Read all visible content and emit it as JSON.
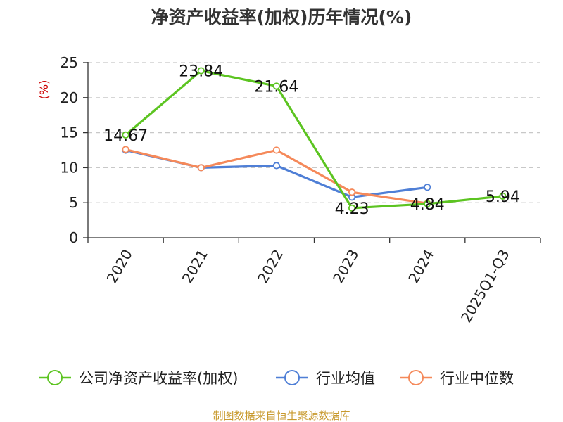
{
  "chart_data": {
    "type": "line",
    "title": "净资产收益率(加权)历年情况(%)",
    "ylabel": "(%)",
    "categories": [
      "2020",
      "2021",
      "2022",
      "2023",
      "2024",
      "2025Q1-Q3"
    ],
    "ylim": [
      0,
      25
    ],
    "yticks": [
      "0",
      "5",
      "10",
      "15",
      "20",
      "25"
    ],
    "grid": true,
    "legend_position": "bottom",
    "series": [
      {
        "name": "公司净资产收益率(加权)",
        "color": "#5cc421",
        "values": [
          14.67,
          23.84,
          21.64,
          4.23,
          4.84,
          5.94
        ],
        "labels": [
          "14.67",
          "23.84",
          "21.64",
          "4.23",
          "4.84",
          "5.94"
        ]
      },
      {
        "name": "行业均值",
        "color": "#4f7fd6",
        "values": [
          12.5,
          10.0,
          10.3,
          5.8,
          7.2,
          null
        ]
      },
      {
        "name": "行业中位数",
        "color": "#f5895a",
        "values": [
          12.6,
          10.0,
          12.5,
          6.5,
          4.9,
          null
        ]
      }
    ]
  },
  "source_text": "制图数据来自恒生聚源数据库"
}
